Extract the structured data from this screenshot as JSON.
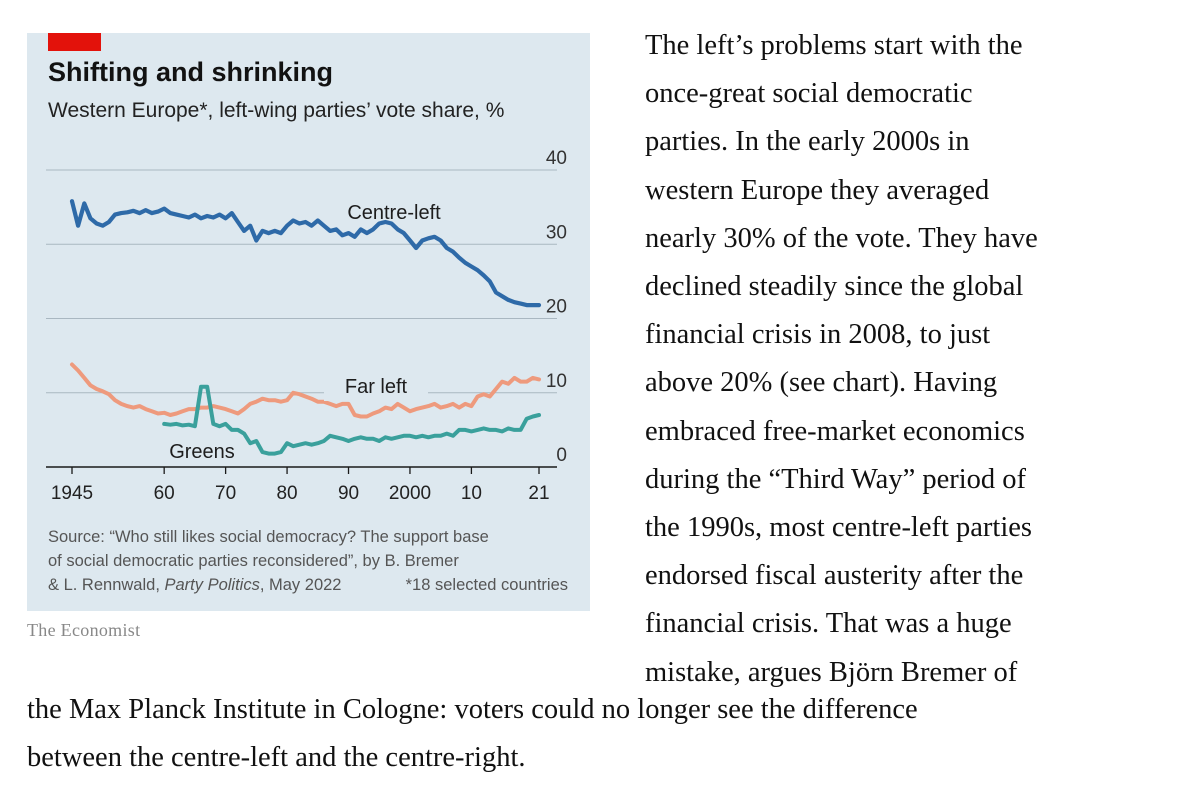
{
  "chart_data": {
    "type": "line",
    "title": "Shifting and shrinking",
    "subtitle": "Western Europe*, left-wing parties’ vote share, %",
    "xlabel": "",
    "ylabel": "",
    "xlim": [
      1944,
      2024
    ],
    "ylim": [
      0,
      40
    ],
    "x_ticks": [
      1945,
      1960,
      1970,
      1980,
      1990,
      2000,
      2010,
      2021
    ],
    "x_tick_labels": [
      "1945",
      "60",
      "70",
      "80",
      "90",
      "2000",
      "10",
      "21"
    ],
    "y_ticks": [
      0,
      10,
      20,
      30,
      40
    ],
    "y_tick_labels": [
      "0",
      "10",
      "20",
      "30",
      "40"
    ],
    "grid": true,
    "series": [
      {
        "name": "Centre-left",
        "label": "Centre-left",
        "color": "#2e6aa8",
        "x": [
          1945,
          1946,
          1947,
          1948,
          1949,
          1950,
          1951,
          1952,
          1953,
          1954,
          1955,
          1956,
          1957,
          1958,
          1959,
          1960,
          1961,
          1962,
          1963,
          1964,
          1965,
          1966,
          1967,
          1968,
          1969,
          1970,
          1971,
          1972,
          1973,
          1974,
          1975,
          1976,
          1977,
          1978,
          1979,
          1980,
          1981,
          1982,
          1983,
          1984,
          1985,
          1986,
          1987,
          1988,
          1989,
          1990,
          1991,
          1992,
          1993,
          1994,
          1995,
          1996,
          1997,
          1998,
          1999,
          2000,
          2001,
          2002,
          2003,
          2004,
          2005,
          2006,
          2007,
          2008,
          2009,
          2010,
          2011,
          2012,
          2013,
          2014,
          2015,
          2016,
          2017,
          2018,
          2019,
          2020,
          2021
        ],
        "y": [
          35.8,
          32.5,
          35.5,
          33.5,
          32.8,
          32.5,
          33.0,
          34.0,
          34.2,
          34.3,
          34.5,
          34.2,
          34.6,
          34.2,
          34.4,
          34.8,
          34.2,
          34.0,
          33.8,
          33.6,
          34.0,
          33.5,
          33.8,
          33.6,
          34.0,
          33.5,
          34.2,
          33.0,
          31.8,
          32.5,
          30.5,
          31.8,
          31.5,
          31.8,
          31.5,
          32.5,
          33.2,
          32.8,
          33.0,
          32.5,
          33.2,
          32.5,
          31.8,
          32.0,
          31.2,
          31.5,
          31.0,
          32.0,
          31.5,
          32.0,
          32.8,
          33.0,
          32.8,
          32.0,
          31.5,
          30.5,
          29.5,
          30.5,
          30.8,
          31.0,
          30.5,
          29.5,
          29.0,
          28.2,
          27.5,
          27.0,
          26.5,
          25.8,
          25.0,
          23.5,
          23.0,
          22.5,
          22.2,
          22.0,
          21.8,
          21.8,
          21.8
        ]
      },
      {
        "name": "Far left",
        "label": "Far left",
        "color": "#ee9a7d",
        "x": [
          1945,
          1946,
          1947,
          1948,
          1949,
          1950,
          1951,
          1952,
          1953,
          1954,
          1955,
          1956,
          1957,
          1958,
          1959,
          1960,
          1961,
          1962,
          1963,
          1964,
          1965,
          1966,
          1967,
          1968,
          1969,
          1970,
          1971,
          1972,
          1973,
          1974,
          1975,
          1976,
          1977,
          1978,
          1979,
          1980,
          1981,
          1982,
          1983,
          1984,
          1985,
          1986,
          1987,
          1988,
          1989,
          1990,
          1991,
          1992,
          1993,
          1994,
          1995,
          1996,
          1997,
          1998,
          1999,
          2000,
          2001,
          2002,
          2003,
          2004,
          2005,
          2006,
          2007,
          2008,
          2009,
          2010,
          2011,
          2012,
          2013,
          2014,
          2015,
          2016,
          2017,
          2018,
          2019,
          2020,
          2021
        ],
        "y": [
          13.8,
          13.0,
          12.0,
          11.0,
          10.5,
          10.2,
          9.8,
          9.0,
          8.5,
          8.2,
          8.0,
          8.2,
          7.8,
          7.5,
          7.2,
          7.3,
          7.0,
          7.2,
          7.5,
          7.8,
          7.8,
          8.0,
          8.0,
          8.2,
          8.0,
          7.8,
          7.5,
          7.2,
          7.8,
          8.5,
          8.8,
          9.2,
          9.0,
          9.0,
          8.8,
          9.0,
          10.0,
          9.8,
          9.5,
          9.2,
          8.8,
          8.8,
          8.5,
          8.2,
          8.5,
          8.5,
          7.0,
          6.8,
          6.8,
          7.2,
          7.5,
          8.0,
          7.8,
          8.5,
          8.0,
          7.5,
          7.8,
          8.0,
          8.2,
          8.5,
          8.0,
          8.2,
          8.5,
          8.0,
          8.5,
          8.2,
          9.5,
          9.8,
          9.5,
          10.5,
          11.5,
          11.2,
          12.0,
          11.5,
          11.5,
          12.0,
          11.8
        ]
      },
      {
        "name": "Greens",
        "label": "Greens",
        "color": "#3aa09c",
        "x": [
          1960,
          1961,
          1962,
          1963,
          1964,
          1965,
          1966,
          1967,
          1968,
          1969,
          1970,
          1971,
          1972,
          1973,
          1974,
          1975,
          1976,
          1977,
          1978,
          1979,
          1980,
          1981,
          1982,
          1983,
          1984,
          1985,
          1986,
          1987,
          1988,
          1989,
          1990,
          1991,
          1992,
          1993,
          1994,
          1995,
          1996,
          1997,
          1998,
          1999,
          2000,
          2001,
          2002,
          2003,
          2004,
          2005,
          2006,
          2007,
          2008,
          2009,
          2010,
          2011,
          2012,
          2013,
          2014,
          2015,
          2016,
          2017,
          2018,
          2019,
          2020,
          2021
        ],
        "y": [
          5.8,
          5.7,
          5.8,
          5.6,
          5.7,
          5.5,
          10.8,
          10.8,
          5.8,
          5.5,
          5.8,
          5.0,
          5.0,
          4.5,
          3.2,
          3.5,
          2.0,
          1.8,
          1.8,
          2.0,
          3.2,
          2.8,
          3.0,
          3.2,
          3.0,
          3.2,
          3.5,
          4.2,
          4.0,
          3.8,
          3.5,
          3.8,
          4.0,
          3.8,
          3.8,
          3.5,
          4.0,
          3.8,
          4.0,
          4.2,
          4.2,
          4.0,
          4.2,
          4.0,
          4.2,
          4.2,
          4.5,
          4.2,
          5.0,
          5.0,
          4.8,
          5.0,
          5.2,
          5.0,
          5.0,
          4.8,
          5.2,
          5.0,
          5.0,
          6.5,
          6.8,
          7.0
        ]
      }
    ]
  },
  "source": {
    "line1": "Source: “Who still likes social democracy? The support base",
    "line2": "of social democratic parties reconsidered”, by B. Bremer",
    "line3_prefix": "& L. Rennwald, ",
    "line3_pub": "Party Politics",
    "line3_suffix": ", May 2022",
    "footnote": "*18 selected countries"
  },
  "publisher": "The Economist",
  "article": {
    "right_lines": [
      "The left’s problems start with the",
      "once-great social democratic",
      "parties. In the early 2000s in",
      "western Europe they averaged",
      "nearly 30% of the vote. They have",
      "declined steadily since the global",
      "financial crisis in 2008, to just",
      "above 20% (see chart). Having",
      "embraced free-market economics",
      "during the “Third Way” period of",
      "the 1990s, most centre-left parties",
      "endorsed fiscal austerity after the",
      "financial crisis. That was a huge",
      "mistake, argues Björn Bremer of"
    ],
    "bottom_lines": [
      "the Max Planck Institute in Cologne: voters could no longer see the difference",
      "between the centre-left and the centre-right."
    ]
  }
}
